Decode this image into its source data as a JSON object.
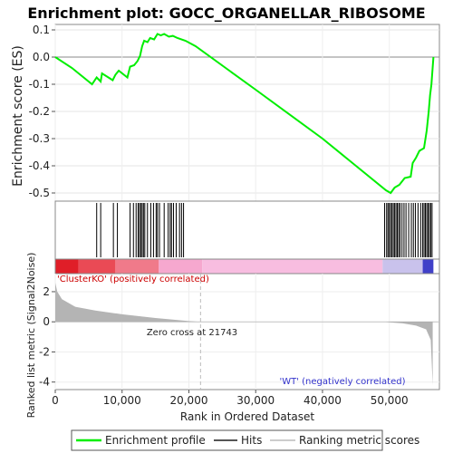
{
  "chart_data": {
    "type": "line",
    "title": "Enrichment plot: GOCC_ORGANELLAR_RIBOSOME",
    "ylabel_top": "Enrichment score (ES)",
    "ylabel_bottom": "Ranked list metric (Signal2Noise)",
    "xlabel": "Rank in Ordered Dataset",
    "xlim": [
      0,
      57500
    ],
    "ylim_es": [
      -0.53,
      0.12
    ],
    "ylim_metric": [
      -4.5,
      3.2
    ],
    "x_ticks": [
      0,
      10000,
      20000,
      30000,
      40000,
      50000
    ],
    "x_tick_labels": [
      "0",
      "10,000",
      "20,000",
      "30,000",
      "40,000",
      "50,000"
    ],
    "es_ticks": [
      0.1,
      0.0,
      -0.1,
      -0.2,
      -0.3,
      -0.4,
      -0.5
    ],
    "es_tick_labels": [
      "0.1",
      "0.0",
      "-0.1",
      "-0.2",
      "-0.3",
      "-0.4",
      "-0.5"
    ],
    "metric_ticks": [
      2,
      0,
      -2,
      -4
    ],
    "metric_tick_labels": [
      "2",
      "0",
      "-2",
      "-4"
    ],
    "es_curve": [
      [
        0,
        0.0
      ],
      [
        2500,
        -0.04
      ],
      [
        5500,
        -0.1
      ],
      [
        6200,
        -0.075
      ],
      [
        6800,
        -0.09
      ],
      [
        7000,
        -0.06
      ],
      [
        8600,
        -0.085
      ],
      [
        9000,
        -0.065
      ],
      [
        9500,
        -0.05
      ],
      [
        10800,
        -0.075
      ],
      [
        11200,
        -0.035
      ],
      [
        11800,
        -0.03
      ],
      [
        12300,
        -0.015
      ],
      [
        12700,
        0.005
      ],
      [
        13000,
        0.04
      ],
      [
        13300,
        0.06
      ],
      [
        13800,
        0.055
      ],
      [
        14200,
        0.07
      ],
      [
        14800,
        0.065
      ],
      [
        15300,
        0.085
      ],
      [
        15800,
        0.08
      ],
      [
        16300,
        0.085
      ],
      [
        17000,
        0.075
      ],
      [
        17600,
        0.078
      ],
      [
        18300,
        0.07
      ],
      [
        19500,
        0.06
      ],
      [
        21000,
        0.04
      ],
      [
        30000,
        -0.12
      ],
      [
        40000,
        -0.3
      ],
      [
        49500,
        -0.49
      ],
      [
        50200,
        -0.5
      ],
      [
        50800,
        -0.48
      ],
      [
        51500,
        -0.47
      ],
      [
        52300,
        -0.445
      ],
      [
        53200,
        -0.44
      ],
      [
        53500,
        -0.39
      ],
      [
        54000,
        -0.37
      ],
      [
        54500,
        -0.345
      ],
      [
        55200,
        -0.335
      ],
      [
        55600,
        -0.27
      ],
      [
        55900,
        -0.2
      ],
      [
        56100,
        -0.14
      ],
      [
        56300,
        -0.1
      ],
      [
        56600,
        0.0
      ]
    ],
    "hits": [
      6200,
      6800,
      8700,
      9300,
      11200,
      11700,
      12100,
      12400,
      12600,
      12800,
      13000,
      13200,
      13400,
      13800,
      14300,
      14700,
      15100,
      15300,
      15600,
      16300,
      16900,
      17200,
      17400,
      17700,
      18100,
      18600,
      18900,
      19200,
      49300,
      49600,
      49800,
      50000,
      50200,
      50400,
      50600,
      50800,
      51000,
      51200,
      51400,
      51600,
      51900,
      52200,
      52500,
      52900,
      53300,
      53600,
      53900,
      54300,
      54700,
      55000,
      55200,
      55400,
      55600,
      55800,
      56000,
      56200,
      56400
    ],
    "metric_profile": [
      [
        0,
        2.6
      ],
      [
        300,
        2.0
      ],
      [
        1000,
        1.5
      ],
      [
        3000,
        1.0
      ],
      [
        6000,
        0.75
      ],
      [
        10000,
        0.5
      ],
      [
        15000,
        0.25
      ],
      [
        20000,
        0.05
      ],
      [
        21743,
        0.0
      ],
      [
        49000,
        0.0
      ],
      [
        52000,
        -0.1
      ],
      [
        54000,
        -0.25
      ],
      [
        55500,
        -0.5
      ],
      [
        56200,
        -1.2
      ],
      [
        56500,
        -4.2
      ]
    ],
    "zero_cross": 21743,
    "zero_cross_label": "Zero cross at 21743",
    "pos_label": "'ClusterKO' (positively correlated)",
    "neg_label": "'WT' (negatively correlated)",
    "legend": {
      "placement": "bottom",
      "items": [
        "Enrichment profile",
        "Hits",
        "Ranking metric scores"
      ]
    },
    "colors": {
      "curve": "#00ee00",
      "hits": "#000000",
      "metric_fill": "#b4b4b4",
      "pos_label": "#cc0000",
      "neg_label": "#3333cc",
      "bar_red": "#e6262f",
      "bar_pink": "#f7b4d8",
      "bar_blue": "#4444cc"
    }
  }
}
